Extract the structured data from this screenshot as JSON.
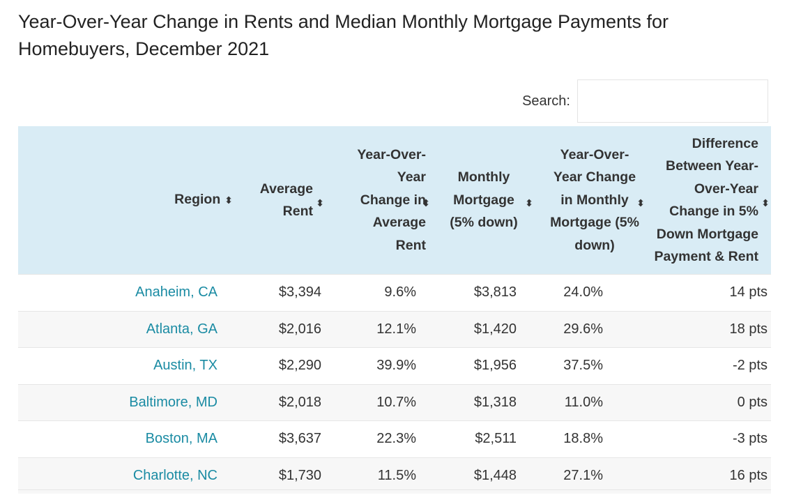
{
  "title": "Year-Over-Year Change in Rents and Median Monthly Mortgage Payments for Homebuyers, December 2021",
  "search": {
    "label": "Search:",
    "value": ""
  },
  "columns": [
    {
      "label": "Region"
    },
    {
      "label": "Average Rent"
    },
    {
      "label": "Year-Over-Year Change in Average Rent"
    },
    {
      "label": "Monthly Mortgage (5% down)"
    },
    {
      "label": "Year-Over-Year Change in Monthly Mortgage (5% down)"
    },
    {
      "label": "Difference Between Year-Over-Year Change in 5% Down Mortgage Payment & Rent"
    }
  ],
  "sort_icon": "sort-updown-icon",
  "link_color": "#1a8ba3",
  "header_bg": "#d9ecf5",
  "rows": [
    {
      "region": "Anaheim, CA",
      "rent": "$3,394",
      "rent_change": "9.6%",
      "mortgage": "$3,813",
      "mortgage_change": "24.0%",
      "difference": "14 pts"
    },
    {
      "region": "Atlanta, GA",
      "rent": "$2,016",
      "rent_change": "12.1%",
      "mortgage": "$1,420",
      "mortgage_change": "29.6%",
      "difference": "18 pts"
    },
    {
      "region": "Austin, TX",
      "rent": "$2,290",
      "rent_change": "39.9%",
      "mortgage": "$1,956",
      "mortgage_change": "37.5%",
      "difference": "-2 pts"
    },
    {
      "region": "Baltimore, MD",
      "rent": "$2,018",
      "rent_change": "10.7%",
      "mortgage": "$1,318",
      "mortgage_change": "11.0%",
      "difference": "0 pts"
    },
    {
      "region": "Boston, MA",
      "rent": "$3,637",
      "rent_change": "22.3%",
      "mortgage": "$2,511",
      "mortgage_change": "18.8%",
      "difference": "-3 pts"
    },
    {
      "region": "Charlotte, NC",
      "rent": "$1,730",
      "rent_change": "11.5%",
      "mortgage": "$1,448",
      "mortgage_change": "27.1%",
      "difference": "16 pts"
    }
  ]
}
